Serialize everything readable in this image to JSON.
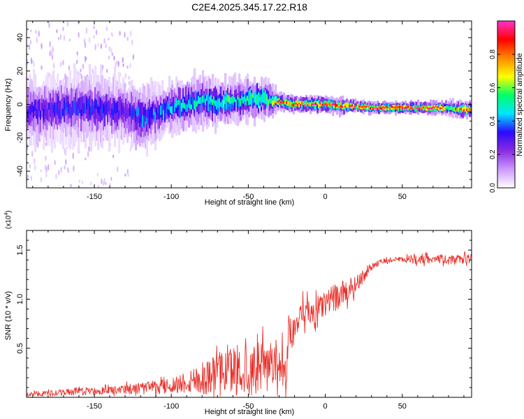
{
  "page_title": "C2E4.2025.345.17.22.R18",
  "colors": {
    "snr_line": "#e8302a",
    "colormap": [
      "#ffffff",
      "#cc99ff",
      "#8a2be2",
      "#2a0aff",
      "#00e5ff",
      "#00ff66",
      "#ffff00",
      "#ff8800",
      "#ff0000",
      "#ff33cc"
    ]
  },
  "chart_data": [
    {
      "type": "heatmap",
      "name": "spectrogram",
      "title": "C2E4.2025.345.17.22.R18",
      "xlabel": "Height of straight line (km)",
      "ylabel": "Frequency (Hz)",
      "xlim": [
        -194,
        95
      ],
      "ylim": [
        -50,
        50
      ],
      "xticks": [
        -150,
        -100,
        -50,
        0,
        50
      ],
      "yticks": [
        -40,
        -20,
        0,
        20,
        40
      ],
      "ridge": {
        "x": [
          -194,
          -170,
          -150,
          -130,
          -120,
          -110,
          -100,
          -90,
          -80,
          -70,
          -60,
          -50,
          -40,
          -35,
          -30,
          -28,
          -20,
          -10,
          0,
          10,
          20,
          30,
          40,
          50,
          60,
          70,
          75,
          80,
          85,
          90,
          95
        ],
        "freq": [
          -4,
          -3,
          -2,
          -4,
          -8,
          -6,
          -2,
          0,
          2,
          1,
          2,
          3,
          4,
          2,
          2,
          1,
          0,
          0,
          0,
          -1,
          -1,
          -2,
          -2,
          -2,
          -2,
          -2,
          -2,
          -2,
          -3,
          -3,
          -3
        ],
        "spread": [
          8,
          8,
          8,
          8,
          8,
          7,
          6,
          6,
          6,
          6,
          5,
          5,
          5,
          4,
          2,
          2,
          2,
          2,
          2,
          2,
          1.5,
          1.5,
          1.5,
          1.5,
          1.5,
          1.5,
          1.5,
          2,
          2,
          2,
          2
        ],
        "peak_amplitude": [
          0.3,
          0.35,
          0.35,
          0.3,
          0.4,
          0.4,
          0.45,
          0.5,
          0.5,
          0.55,
          0.55,
          0.55,
          0.6,
          0.6,
          0.9,
          0.9,
          0.95,
          0.9,
          0.95,
          0.9,
          0.9,
          1.0,
          1.0,
          1.0,
          1.0,
          1.0,
          1.0,
          0.6,
          0.8,
          0.9,
          0.9
        ]
      }
    },
    {
      "type": "colorbar",
      "name": "amplitude-colorbar",
      "label": "Normalized spectral amplitude",
      "range": [
        0,
        1
      ],
      "ticks": [
        "0.0",
        "0.2",
        "0.4",
        "0.6",
        "0.8"
      ],
      "tick_values": [
        0.0,
        0.2,
        0.4,
        0.6,
        0.8
      ]
    },
    {
      "type": "line",
      "name": "snr-line",
      "xlabel": "Height of straight line (km)",
      "ylabel": "SNR (10 * v/v)",
      "scale_label": "(x10",
      "scale_exp": "4",
      "scale_close": ")",
      "xlim": [
        -194,
        95
      ],
      "ylim": [
        0,
        1.7
      ],
      "xticks": [
        -150,
        -100,
        -50,
        0,
        50
      ],
      "yticks": [
        "0.5",
        "1.0",
        "1.5"
      ],
      "ytick_values": [
        0.5,
        1.0,
        1.5
      ],
      "series": [
        {
          "name": "SNR",
          "x": [
            -194,
            -180,
            -160,
            -140,
            -130,
            -120,
            -110,
            -100,
            -90,
            -80,
            -70,
            -60,
            -55,
            -50,
            -45,
            -40,
            -35,
            -30,
            -25,
            -24,
            -22,
            -20,
            -15,
            -10,
            -5,
            0,
            5,
            10,
            15,
            20,
            25,
            30,
            35,
            40,
            50,
            60,
            65,
            70,
            80,
            90,
            95
          ],
          "mean": [
            0.03,
            0.04,
            0.06,
            0.07,
            0.07,
            0.09,
            0.1,
            0.12,
            0.16,
            0.2,
            0.24,
            0.28,
            0.3,
            0.28,
            0.28,
            0.3,
            0.3,
            0.28,
            0.26,
            0.7,
            0.65,
            0.7,
            0.8,
            0.85,
            0.9,
            0.95,
            1.0,
            1.05,
            1.1,
            1.15,
            1.25,
            1.33,
            1.37,
            1.4,
            1.4,
            1.41,
            1.42,
            1.42,
            1.4,
            1.41,
            1.42
          ],
          "noise": [
            0.02,
            0.03,
            0.04,
            0.04,
            0.05,
            0.06,
            0.07,
            0.08,
            0.12,
            0.18,
            0.22,
            0.26,
            0.28,
            0.28,
            0.28,
            0.26,
            0.24,
            0.22,
            0.22,
            0.14,
            0.16,
            0.16,
            0.16,
            0.16,
            0.14,
            0.14,
            0.14,
            0.13,
            0.12,
            0.1,
            0.07,
            0.04,
            0.03,
            0.03,
            0.03,
            0.05,
            0.06,
            0.05,
            0.04,
            0.05,
            0.05
          ]
        }
      ]
    }
  ]
}
